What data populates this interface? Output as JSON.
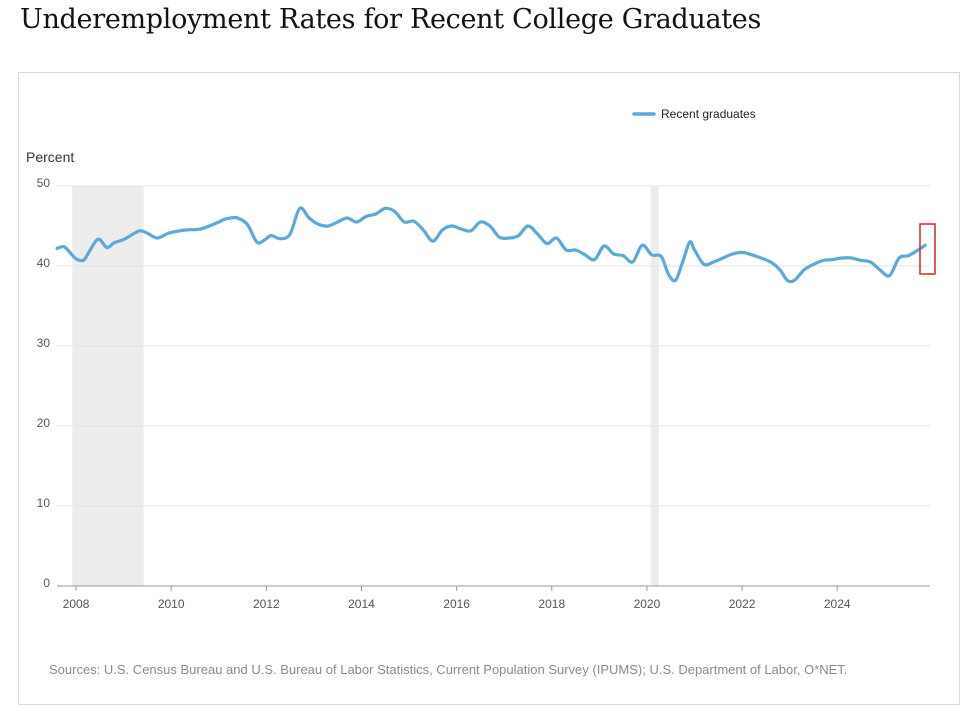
{
  "chart_data": {
    "type": "line",
    "title": "Underemployment Rates for Recent College Graduates",
    "ylabel": "Percent",
    "xlabel": "",
    "ylim": [
      0,
      50
    ],
    "xlim": [
      2007.6,
      2025.95
    ],
    "yticks": [
      0,
      10,
      20,
      30,
      40,
      50
    ],
    "xticks": [
      2008,
      2010,
      2012,
      2014,
      2016,
      2018,
      2020,
      2022,
      2024
    ],
    "grid": "horizontal",
    "legend_position": "top-right",
    "series": [
      {
        "name": "Recent graduates",
        "color": "#5ba8d9",
        "x": [
          2007.6,
          2007.75,
          2007.9,
          2008.0,
          2008.15,
          2008.25,
          2008.4,
          2008.5,
          2008.65,
          2008.8,
          2009.0,
          2009.2,
          2009.35,
          2009.5,
          2009.7,
          2009.9,
          2010.0,
          2010.3,
          2010.6,
          2010.8,
          2011.0,
          2011.1,
          2011.25,
          2011.4,
          2011.6,
          2011.8,
          2011.95,
          2012.1,
          2012.3,
          2012.5,
          2012.7,
          2012.9,
          2013.1,
          2013.3,
          2013.5,
          2013.7,
          2013.9,
          2014.1,
          2014.3,
          2014.5,
          2014.7,
          2014.9,
          2015.1,
          2015.3,
          2015.5,
          2015.7,
          2015.9,
          2016.1,
          2016.3,
          2016.5,
          2016.7,
          2016.9,
          2017.1,
          2017.3,
          2017.5,
          2017.7,
          2017.9,
          2018.1,
          2018.3,
          2018.5,
          2018.7,
          2018.9,
          2019.1,
          2019.3,
          2019.5,
          2019.7,
          2019.9,
          2020.1,
          2020.3,
          2020.45,
          2020.6,
          2020.75,
          2020.9,
          2021.0,
          2021.2,
          2021.4,
          2021.6,
          2021.8,
          2022.0,
          2022.2,
          2022.4,
          2022.6,
          2022.8,
          2022.95,
          2023.1,
          2023.3,
          2023.5,
          2023.7,
          2023.9,
          2024.1,
          2024.3,
          2024.5,
          2024.7,
          2024.9,
          2025.1,
          2025.3,
          2025.5,
          2025.7,
          2025.85
        ],
        "y": [
          42.2,
          42.4,
          41.5,
          40.9,
          40.7,
          41.5,
          43.0,
          43.3,
          42.3,
          42.9,
          43.3,
          44.0,
          44.4,
          44.1,
          43.5,
          44.0,
          44.2,
          44.5,
          44.6,
          45.0,
          45.5,
          45.8,
          46.0,
          46.0,
          45.2,
          43.0,
          43.2,
          43.8,
          43.4,
          44.0,
          47.2,
          46.0,
          45.2,
          45.0,
          45.5,
          46.0,
          45.5,
          46.2,
          46.5,
          47.2,
          46.8,
          45.5,
          45.6,
          44.5,
          43.1,
          44.5,
          45.0,
          44.6,
          44.4,
          45.5,
          45.0,
          43.6,
          43.5,
          43.8,
          45.0,
          44.0,
          42.8,
          43.5,
          42.0,
          42.0,
          41.4,
          40.8,
          42.5,
          41.5,
          41.3,
          40.5,
          42.6,
          41.4,
          41.2,
          39.0,
          38.2,
          40.5,
          43.0,
          42.0,
          40.2,
          40.5,
          41.0,
          41.5,
          41.7,
          41.4,
          41.0,
          40.5,
          39.5,
          38.2,
          38.2,
          39.5,
          40.2,
          40.7,
          40.8,
          41.0,
          41.0,
          40.7,
          40.5,
          39.5,
          38.8,
          41.0,
          41.3,
          42.0,
          42.6
        ]
      }
    ],
    "recessions": [
      [
        2007.92,
        2009.42
      ],
      [
        2020.08,
        2020.25
      ]
    ]
  },
  "legend": {
    "label": "Recent graduates",
    "color": "#5ba8d9"
  },
  "source_note": "Sources: U.S. Census Bureau and U.S. Bureau of Labor Statistics, Current Population Survey (IPUMS); U.S. Department of Labor, O*NET.",
  "colors": {
    "line": "#5ba8d9",
    "recession": "#ececec",
    "grid": "#e3e3e3",
    "axis": "#999999",
    "highlight_box": "#d0262a"
  }
}
